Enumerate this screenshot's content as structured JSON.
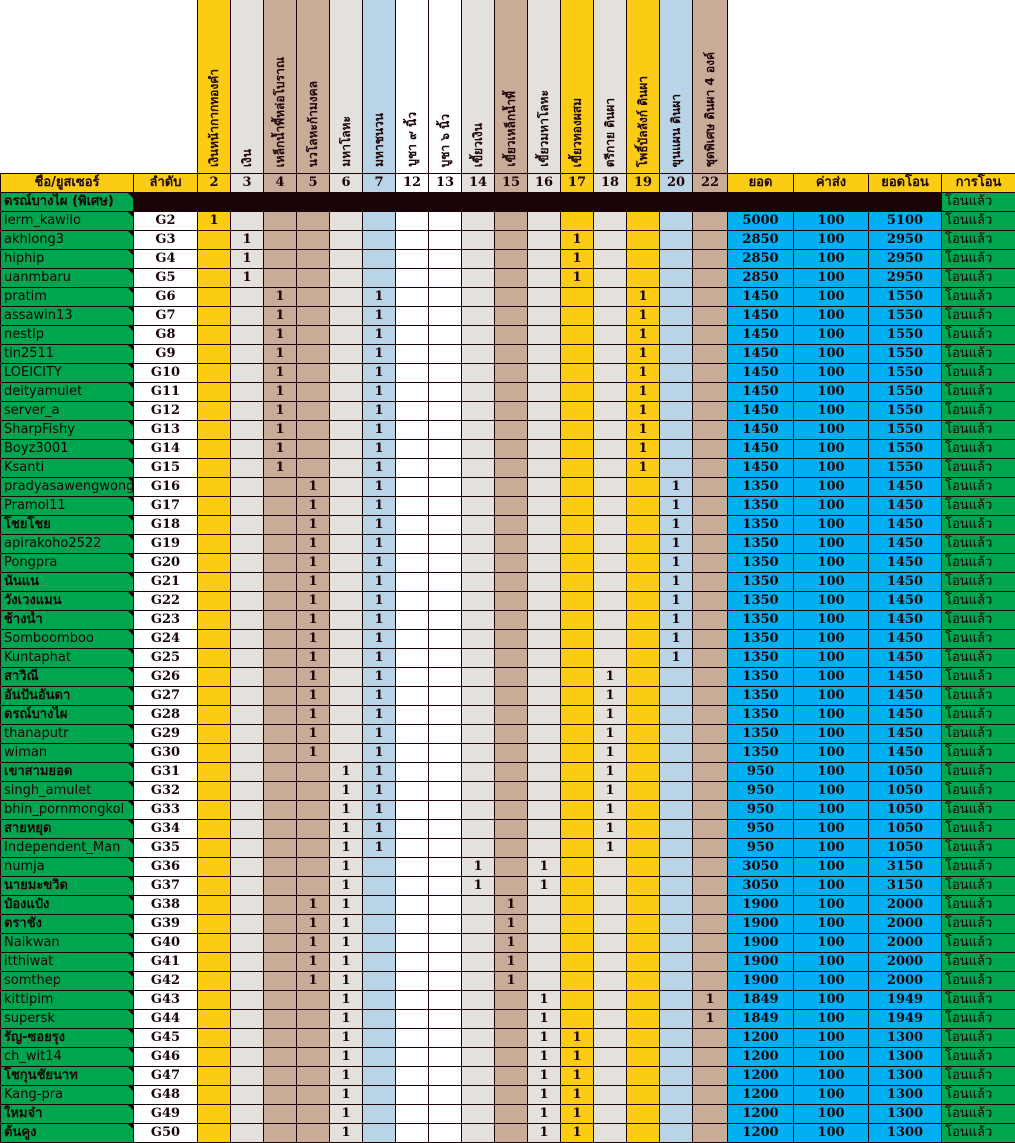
{
  "sheet": {
    "item_columns": [
      {
        "code": "2",
        "label": "เงินหน้ากากทองคำ",
        "color": "#fccc14"
      },
      {
        "code": "3",
        "label": "เงิน",
        "color": "#e4e1dc"
      },
      {
        "code": "4",
        "label": "เหล็กน้ำพี้หล่อโบราณ",
        "color": "#c8ac98"
      },
      {
        "code": "5",
        "label": "นวโลหะก้ามงคล",
        "color": "#c8ac98"
      },
      {
        "code": "6",
        "label": "มหาโลหะ",
        "color": "#e4e1dc"
      },
      {
        "code": "7",
        "label": "มหาชนวน",
        "color": "#b8d4e6"
      },
      {
        "code": "12",
        "label": "บูชา ๙ นิ้ว",
        "color": "#ffffff"
      },
      {
        "code": "13",
        "label": "บูชา ๖ นิ้ว",
        "color": "#ffffff"
      },
      {
        "code": "14",
        "label": "เขี้ยวเงิน",
        "color": "#e4e1dc"
      },
      {
        "code": "15",
        "label": "เขี้ยวเหล็กน้ำพี้",
        "color": "#c8ac98"
      },
      {
        "code": "16",
        "label": "เขี้ยวมหาโลหะ",
        "color": "#e4e1dc"
      },
      {
        "code": "17",
        "label": "เขี้ยวทองผสม",
        "color": "#fccc14"
      },
      {
        "code": "18",
        "label": "ตรีกาย ดินผา",
        "color": "#e4e1dc"
      },
      {
        "code": "19",
        "label": "โพธิ์บัลลังก์ ดินผา",
        "color": "#fccc14"
      },
      {
        "code": "20",
        "label": "ขุนแผน ดินผา",
        "color": "#b8d4e6"
      },
      {
        "code": "22",
        "label": "ชุดพิเศษ ดินผา 4 องค์",
        "color": "#c8ac98"
      }
    ],
    "headers": {
      "name": "ชื่อ/ยูสเซอร์",
      "order": "ลำดับ",
      "total": "ยอด",
      "shipping": "ค่าส่ง",
      "transfer_total": "ยอดโอน",
      "status": "การโอน"
    },
    "special_row": {
      "name": "ดรณ์บางไผ (พิเศษ)",
      "status": "โอนแล้ว"
    },
    "rows": [
      {
        "name": "lerm_kawilo",
        "order": "G2",
        "marks": [
          "2"
        ],
        "total": "5000",
        "shipping": "100",
        "transfer_total": "5100",
        "status": "โอนแล้ว"
      },
      {
        "name": "akhlong3",
        "order": "G3",
        "marks": [
          "3",
          "17"
        ],
        "total": "2850",
        "shipping": "100",
        "transfer_total": "2950",
        "status": "โอนแล้ว"
      },
      {
        "name": "hiphip",
        "order": "G4",
        "marks": [
          "3",
          "17"
        ],
        "total": "2850",
        "shipping": "100",
        "transfer_total": "2950",
        "status": "โอนแล้ว"
      },
      {
        "name": "uanmbaru",
        "order": "G5",
        "marks": [
          "3",
          "17"
        ],
        "total": "2850",
        "shipping": "100",
        "transfer_total": "2950",
        "status": "โอนแล้ว"
      },
      {
        "name": "pratim",
        "order": "G6",
        "marks": [
          "4",
          "7",
          "19"
        ],
        "total": "1450",
        "shipping": "100",
        "transfer_total": "1550",
        "status": "โอนแล้ว"
      },
      {
        "name": "assawin13",
        "order": "G7",
        "marks": [
          "4",
          "7",
          "19"
        ],
        "total": "1450",
        "shipping": "100",
        "transfer_total": "1550",
        "status": "โอนแล้ว"
      },
      {
        "name": "nestlp",
        "order": "G8",
        "marks": [
          "4",
          "7",
          "19"
        ],
        "total": "1450",
        "shipping": "100",
        "transfer_total": "1550",
        "status": "โอนแล้ว"
      },
      {
        "name": "tin2511",
        "order": "G9",
        "marks": [
          "4",
          "7",
          "19"
        ],
        "total": "1450",
        "shipping": "100",
        "transfer_total": "1550",
        "status": "โอนแล้ว"
      },
      {
        "name": "LOEICITY",
        "order": "G10",
        "marks": [
          "4",
          "7",
          "19"
        ],
        "total": "1450",
        "shipping": "100",
        "transfer_total": "1550",
        "status": "โอนแล้ว"
      },
      {
        "name": "deityamulet",
        "order": "G11",
        "marks": [
          "4",
          "7",
          "19"
        ],
        "total": "1450",
        "shipping": "100",
        "transfer_total": "1550",
        "status": "โอนแล้ว"
      },
      {
        "name": "server_a",
        "order": "G12",
        "marks": [
          "4",
          "7",
          "19"
        ],
        "total": "1450",
        "shipping": "100",
        "transfer_total": "1550",
        "status": "โอนแล้ว"
      },
      {
        "name": "SharpFishy",
        "order": "G13",
        "marks": [
          "4",
          "7",
          "19"
        ],
        "total": "1450",
        "shipping": "100",
        "transfer_total": "1550",
        "status": "โอนแล้ว"
      },
      {
        "name": "Boyz3001",
        "order": "G14",
        "marks": [
          "4",
          "7",
          "19"
        ],
        "total": "1450",
        "shipping": "100",
        "transfer_total": "1550",
        "status": "โอนแล้ว"
      },
      {
        "name": "Ksanti",
        "order": "G15",
        "marks": [
          "4",
          "7",
          "19"
        ],
        "total": "1450",
        "shipping": "100",
        "transfer_total": "1550",
        "status": "โอนแล้ว"
      },
      {
        "name": "pradyasawengwong",
        "order": "G16",
        "marks": [
          "5",
          "7",
          "20"
        ],
        "total": "1350",
        "shipping": "100",
        "transfer_total": "1450",
        "status": "โอนแล้ว"
      },
      {
        "name": "Pramol11",
        "order": "G17",
        "marks": [
          "5",
          "7",
          "20"
        ],
        "total": "1350",
        "shipping": "100",
        "transfer_total": "1450",
        "status": "โอนแล้ว"
      },
      {
        "name": "โชยโชย",
        "order": "G18",
        "marks": [
          "5",
          "7",
          "20"
        ],
        "total": "1350",
        "shipping": "100",
        "transfer_total": "1450",
        "status": "โอนแล้ว"
      },
      {
        "name": "apirakoho2522",
        "order": "G19",
        "marks": [
          "5",
          "7",
          "20"
        ],
        "total": "1350",
        "shipping": "100",
        "transfer_total": "1450",
        "status": "โอนแล้ว"
      },
      {
        "name": "Pongpra",
        "order": "G20",
        "marks": [
          "5",
          "7",
          "20"
        ],
        "total": "1350",
        "shipping": "100",
        "transfer_total": "1450",
        "status": "โอนแล้ว"
      },
      {
        "name": "นันแน",
        "order": "G21",
        "marks": [
          "5",
          "7",
          "20"
        ],
        "total": "1350",
        "shipping": "100",
        "transfer_total": "1450",
        "status": "โอนแล้ว"
      },
      {
        "name": "วังเวงแมน",
        "order": "G22",
        "marks": [
          "5",
          "7",
          "20"
        ],
        "total": "1350",
        "shipping": "100",
        "transfer_total": "1450",
        "status": "โอนแล้ว"
      },
      {
        "name": "ช้างน้ำ",
        "order": "G23",
        "marks": [
          "5",
          "7",
          "20"
        ],
        "total": "1350",
        "shipping": "100",
        "transfer_total": "1450",
        "status": "โอนแล้ว"
      },
      {
        "name": "Somboomboo",
        "order": "G24",
        "marks": [
          "5",
          "7",
          "20"
        ],
        "total": "1350",
        "shipping": "100",
        "transfer_total": "1450",
        "status": "โอนแล้ว"
      },
      {
        "name": "Kuntaphat",
        "order": "G25",
        "marks": [
          "5",
          "7",
          "20"
        ],
        "total": "1350",
        "shipping": "100",
        "transfer_total": "1450",
        "status": "โอนแล้ว"
      },
      {
        "name": "สาวิณี",
        "order": "G26",
        "marks": [
          "5",
          "7",
          "18"
        ],
        "total": "1350",
        "shipping": "100",
        "transfer_total": "1450",
        "status": "โอนแล้ว"
      },
      {
        "name": "อันปันอันดา",
        "order": "G27",
        "marks": [
          "5",
          "7",
          "18"
        ],
        "total": "1350",
        "shipping": "100",
        "transfer_total": "1450",
        "status": "โอนแล้ว"
      },
      {
        "name": "ดรณ์บางไผ",
        "order": "G28",
        "marks": [
          "5",
          "7",
          "18"
        ],
        "total": "1350",
        "shipping": "100",
        "transfer_total": "1450",
        "status": "โอนแล้ว"
      },
      {
        "name": "thanaputr",
        "order": "G29",
        "marks": [
          "5",
          "7",
          "18"
        ],
        "total": "1350",
        "shipping": "100",
        "transfer_total": "1450",
        "status": "โอนแล้ว"
      },
      {
        "name": "wiman",
        "order": "G30",
        "marks": [
          "5",
          "7",
          "18"
        ],
        "total": "1350",
        "shipping": "100",
        "transfer_total": "1450",
        "status": "โอนแล้ว"
      },
      {
        "name": "เขาสามยอด",
        "order": "G31",
        "marks": [
          "6",
          "7",
          "18"
        ],
        "total": "950",
        "shipping": "100",
        "transfer_total": "1050",
        "status": "โอนแล้ว"
      },
      {
        "name": "singh_amulet",
        "order": "G32",
        "marks": [
          "6",
          "7",
          "18"
        ],
        "total": "950",
        "shipping": "100",
        "transfer_total": "1050",
        "status": "โอนแล้ว"
      },
      {
        "name": "bhin_pornmongkol",
        "order": "G33",
        "marks": [
          "6",
          "7",
          "18"
        ],
        "total": "950",
        "shipping": "100",
        "transfer_total": "1050",
        "status": "โอนแล้ว"
      },
      {
        "name": "สายหยุด",
        "order": "G34",
        "marks": [
          "6",
          "7",
          "18"
        ],
        "total": "950",
        "shipping": "100",
        "transfer_total": "1050",
        "status": "โอนแล้ว"
      },
      {
        "name": "Independent_Man",
        "order": "G35",
        "marks": [
          "6",
          "7",
          "18"
        ],
        "total": "950",
        "shipping": "100",
        "transfer_total": "1050",
        "status": "โอนแล้ว"
      },
      {
        "name": "numja",
        "order": "G36",
        "marks": [
          "6",
          "14",
          "16"
        ],
        "total": "3050",
        "shipping": "100",
        "transfer_total": "3150",
        "status": "โอนแล้ว"
      },
      {
        "name": "นายมะขวิด",
        "order": "G37",
        "marks": [
          "6",
          "14",
          "16"
        ],
        "total": "3050",
        "shipping": "100",
        "transfer_total": "3150",
        "status": "โอนแล้ว"
      },
      {
        "name": "ป๋องแป๋ง",
        "order": "G38",
        "marks": [
          "5",
          "6",
          "15"
        ],
        "total": "1900",
        "shipping": "100",
        "transfer_total": "2000",
        "status": "โอนแล้ว"
      },
      {
        "name": "ตราชัง",
        "order": "G39",
        "marks": [
          "5",
          "6",
          "15"
        ],
        "total": "1900",
        "shipping": "100",
        "transfer_total": "2000",
        "status": "โอนแล้ว"
      },
      {
        "name": "Naikwan",
        "order": "G40",
        "marks": [
          "5",
          "6",
          "15"
        ],
        "total": "1900",
        "shipping": "100",
        "transfer_total": "2000",
        "status": "โอนแล้ว"
      },
      {
        "name": "itthiwat",
        "order": "G41",
        "marks": [
          "5",
          "6",
          "15"
        ],
        "total": "1900",
        "shipping": "100",
        "transfer_total": "2000",
        "status": "โอนแล้ว"
      },
      {
        "name": "somthep",
        "order": "G42",
        "marks": [
          "5",
          "6",
          "15"
        ],
        "total": "1900",
        "shipping": "100",
        "transfer_total": "2000",
        "status": "โอนแล้ว"
      },
      {
        "name": "kittipim",
        "order": "G43",
        "marks": [
          "6",
          "16",
          "22"
        ],
        "total": "1849",
        "shipping": "100",
        "transfer_total": "1949",
        "status": "โอนแล้ว"
      },
      {
        "name": "supersk",
        "order": "G44",
        "marks": [
          "6",
          "16",
          "22"
        ],
        "total": "1849",
        "shipping": "100",
        "transfer_total": "1949",
        "status": "โอนแล้ว"
      },
      {
        "name": "รัญ-ซอยรุง",
        "order": "G45",
        "marks": [
          "6",
          "16",
          "17"
        ],
        "total": "1200",
        "shipping": "100",
        "transfer_total": "1300",
        "status": "โอนแล้ว"
      },
      {
        "name": "ch_wit14",
        "order": "G46",
        "marks": [
          "6",
          "16",
          "17"
        ],
        "total": "1200",
        "shipping": "100",
        "transfer_total": "1300",
        "status": "โอนแล้ว"
      },
      {
        "name": "โชกุนชัยนาท",
        "order": "G47",
        "marks": [
          "6",
          "16",
          "17"
        ],
        "total": "1200",
        "shipping": "100",
        "transfer_total": "1300",
        "status": "โอนแล้ว"
      },
      {
        "name": "Kang-pra",
        "order": "G48",
        "marks": [
          "6",
          "16",
          "17"
        ],
        "total": "1200",
        "shipping": "100",
        "transfer_total": "1300",
        "status": "โอนแล้ว"
      },
      {
        "name": "ใหมจ๋า",
        "order": "G49",
        "marks": [
          "6",
          "16",
          "17"
        ],
        "total": "1200",
        "shipping": "100",
        "transfer_total": "1300",
        "status": "โอนแล้ว"
      },
      {
        "name": "ต้นคูง",
        "order": "G50",
        "marks": [
          "6",
          "16",
          "17"
        ],
        "total": "1200",
        "shipping": "100",
        "transfer_total": "1300",
        "status": "โอนแล้ว"
      }
    ],
    "mark_value": "1",
    "colors": {
      "name_cell": "#00a550",
      "sum_cell": "#00b0f0",
      "header_row": "#fccc14",
      "divider": "#1a0408"
    }
  }
}
